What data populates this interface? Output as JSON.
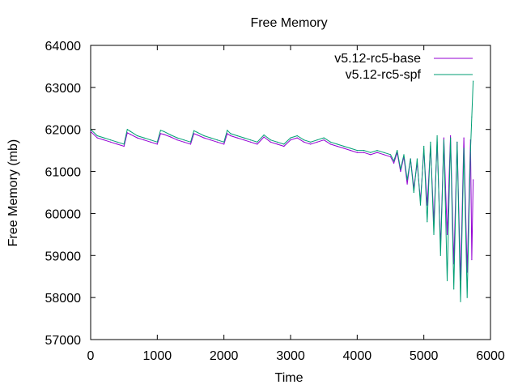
{
  "chart_data": {
    "type": "line",
    "title": "Free Memory",
    "xlabel": "Time",
    "ylabel": "Free Memory (mb)",
    "xlim": [
      0,
      6000
    ],
    "ylim": [
      57000,
      64000
    ],
    "xticks": [
      0,
      1000,
      2000,
      3000,
      4000,
      5000,
      6000
    ],
    "yticks": [
      57000,
      58000,
      59000,
      60000,
      61000,
      62000,
      63000,
      64000
    ],
    "grid": false,
    "legend_position": "top-right",
    "series": [
      {
        "name": "v5.12-rc5-base",
        "color": "#9400d3",
        "x": [
          0,
          100,
          200,
          300,
          400,
          500,
          550,
          600,
          700,
          800,
          900,
          1000,
          1050,
          1100,
          1200,
          1300,
          1400,
          1500,
          1550,
          1600,
          1700,
          1800,
          1900,
          2000,
          2050,
          2100,
          2200,
          2300,
          2400,
          2500,
          2600,
          2700,
          2800,
          2900,
          3000,
          3100,
          3200,
          3300,
          3400,
          3500,
          3600,
          3700,
          3800,
          3900,
          4000,
          4100,
          4200,
          4300,
          4400,
          4500,
          4550,
          4600,
          4650,
          4700,
          4750,
          4800,
          4850,
          4900,
          4950,
          5000,
          5050,
          5100,
          5150,
          5200,
          5250,
          5300,
          5350,
          5400,
          5450,
          5500,
          5550,
          5600,
          5650,
          5700,
          5720,
          5740
        ],
        "values": [
          61950,
          61800,
          61750,
          61700,
          61650,
          61600,
          61920,
          61880,
          61800,
          61750,
          61700,
          61650,
          61900,
          61880,
          61820,
          61750,
          61700,
          61650,
          61900,
          61870,
          61800,
          61750,
          61700,
          61650,
          61900,
          61850,
          61800,
          61750,
          61700,
          61650,
          61820,
          61700,
          61650,
          61600,
          61750,
          61800,
          61700,
          61650,
          61700,
          61750,
          61650,
          61600,
          61550,
          61500,
          61450,
          61450,
          61400,
          61450,
          61400,
          61350,
          61200,
          61450,
          61000,
          61350,
          60700,
          61300,
          60600,
          61200,
          60300,
          61500,
          60200,
          61600,
          59800,
          61700,
          59200,
          61800,
          59500,
          61850,
          58800,
          61700,
          58400,
          61800,
          58600,
          61750,
          58900,
          60800
        ]
      },
      {
        "name": "v5.12-rc5-spf",
        "color": "#009e73",
        "x": [
          0,
          100,
          200,
          300,
          400,
          500,
          550,
          600,
          700,
          800,
          900,
          1000,
          1050,
          1100,
          1200,
          1300,
          1400,
          1500,
          1550,
          1600,
          1700,
          1800,
          1900,
          2000,
          2050,
          2100,
          2200,
          2300,
          2400,
          2500,
          2600,
          2700,
          2800,
          2900,
          3000,
          3100,
          3200,
          3300,
          3400,
          3500,
          3600,
          3700,
          3800,
          3900,
          4000,
          4100,
          4200,
          4300,
          4400,
          4500,
          4550,
          4600,
          4650,
          4700,
          4750,
          4800,
          4850,
          4900,
          4950,
          5000,
          5050,
          5100,
          5150,
          5200,
          5250,
          5300,
          5350,
          5400,
          5450,
          5500,
          5550,
          5600,
          5650,
          5700,
          5720,
          5740
        ],
        "values": [
          62000,
          61850,
          61800,
          61750,
          61700,
          61650,
          62000,
          61950,
          61850,
          61800,
          61750,
          61700,
          61980,
          61950,
          61870,
          61800,
          61750,
          61700,
          61970,
          61930,
          61850,
          61800,
          61750,
          61700,
          61980,
          61900,
          61850,
          61800,
          61750,
          61700,
          61870,
          61750,
          61700,
          61650,
          61800,
          61850,
          61750,
          61700,
          61750,
          61800,
          61700,
          61650,
          61600,
          61550,
          61500,
          61500,
          61450,
          61500,
          61450,
          61400,
          61250,
          61500,
          61050,
          61400,
          60800,
          61300,
          60500,
          61300,
          60200,
          61600,
          59800,
          61700,
          59500,
          61850,
          59000,
          61750,
          58400,
          61800,
          58200,
          61700,
          57900,
          61550,
          58000,
          61500,
          62300,
          63150
        ]
      }
    ]
  }
}
